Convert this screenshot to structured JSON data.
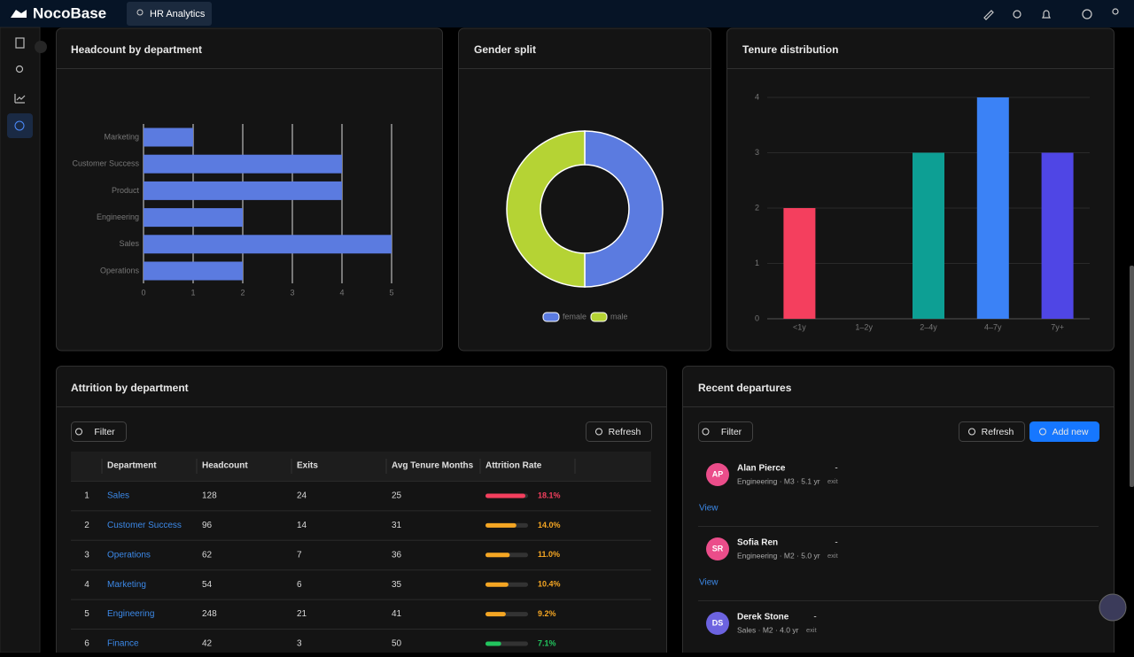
{
  "header": {
    "brand": "NocoBase",
    "tab": "HR Analytics"
  },
  "headcount": {
    "type": "bar",
    "title": "Headcount by department",
    "categories": [
      "Marketing",
      "Customer Success",
      "Product",
      "Engineering",
      "Sales",
      "Operations"
    ],
    "values": [
      1,
      4,
      4,
      2,
      5,
      2
    ],
    "color": "#5b7be0",
    "xlim": [
      0,
      5
    ],
    "xticks": [
      0,
      1,
      2,
      3,
      4,
      5
    ],
    "grid": true
  },
  "gender": {
    "type": "pie",
    "title": "Gender split",
    "categories": [
      "female",
      "male"
    ],
    "values": [
      50,
      50
    ],
    "colors": [
      "#5b7be0",
      "#b5d334"
    ]
  },
  "tenure": {
    "type": "bar",
    "title": "Tenure distribution",
    "categories": [
      "<1y",
      "1–2y",
      "2–4y",
      "4–7y",
      "7y+"
    ],
    "values": [
      2,
      0,
      3,
      4,
      3
    ],
    "colors": [
      "#f43f5e",
      "#8b5cf6",
      "#0d9f94",
      "#3b82f6",
      "#4f46e5"
    ],
    "ylim": [
      0,
      4
    ],
    "yticks": [
      0,
      1,
      2,
      3,
      4
    ],
    "grid": true
  },
  "attrition": {
    "title": "Attrition by department",
    "filter": "Filter",
    "refresh": "Refresh",
    "columns": [
      "Department",
      "Headcount",
      "Exits",
      "Avg Tenure Months",
      "Attrition Rate"
    ],
    "rows": [
      [
        "1",
        "Sales",
        "128",
        "24",
        "25",
        "18.1%"
      ],
      [
        "2",
        "Customer Success",
        "96",
        "14",
        "31",
        "14.0%"
      ],
      [
        "3",
        "Operations",
        "62",
        "7",
        "36",
        "11.0%"
      ],
      [
        "4",
        "Marketing",
        "54",
        "6",
        "35",
        "10.4%"
      ],
      [
        "5",
        "Engineering",
        "248",
        "21",
        "41",
        "9.2%"
      ],
      [
        "6",
        "Finance",
        "42",
        "3",
        "50",
        "7.1%"
      ]
    ],
    "rate_colors": [
      "#f43f5e",
      "#f5a623",
      "#f5a623",
      "#f5a623",
      "#f5a623",
      "#22c55e"
    ]
  },
  "departures": {
    "title": "Recent departures",
    "filter": "Filter",
    "refresh": "Refresh",
    "add": "Add new",
    "items": [
      {
        "initials": "AP",
        "name": "Alan Pierce",
        "meta": "Engineering · M3 · 5.1 yr",
        "value": "-",
        "sub": "exit",
        "action": "View",
        "avatar_color": "#eb4d8a"
      },
      {
        "initials": "SR",
        "name": "Sofia Ren",
        "meta": "Engineering · M2 · 5.0 yr",
        "value": "-",
        "sub": "exit",
        "action": "View",
        "avatar_color": "#eb4d8a"
      },
      {
        "initials": "DS",
        "name": "Derek Stone",
        "meta": "Sales · M2 · 4.0 yr",
        "value": "-",
        "sub": "exit",
        "avatar_color": "#6c63e0"
      }
    ]
  }
}
